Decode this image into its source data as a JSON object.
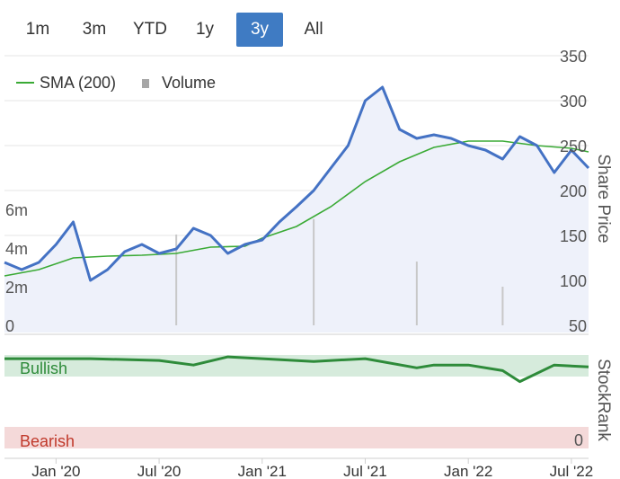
{
  "range_selector": {
    "options": [
      "1m",
      "3m",
      "YTD",
      "1y",
      "3y",
      "All"
    ],
    "selected": "3y"
  },
  "colors": {
    "price_line": "#4472c4",
    "price_fill": "#eef1fa",
    "sma_line": "#3aaa35",
    "volume_bar": "#c8c8c8",
    "bullish_band": "#d6ebdc",
    "bearish_band": "#f4d9d9",
    "rank_line": "#2e8b3a",
    "rank_low": "#9a9a9a",
    "active_range": "#3f7bc3"
  },
  "chart_data": [
    {
      "type": "line",
      "y2label": "Share Price",
      "y2_ticks": [
        350,
        300,
        250,
        200,
        150,
        100,
        50
      ],
      "y2lim": [
        50,
        350
      ],
      "y_ticks": [
        "6m",
        "4m",
        "2m",
        "0"
      ],
      "ylim": [
        0,
        7000000
      ],
      "x_ticks": [
        "Jan '20",
        "Jul '20",
        "Jan '21",
        "Jul '21",
        "Jan '22",
        "Jul '22"
      ],
      "legend": [
        "SMA (200)",
        "Volume"
      ],
      "legend_position": "top-left",
      "grid": true,
      "series": [
        {
          "name": "Share Price",
          "x": [
            "2019-10",
            "2019-11",
            "2019-12",
            "2020-01",
            "2020-02",
            "2020-03",
            "2020-04",
            "2020-05",
            "2020-06",
            "2020-07",
            "2020-08",
            "2020-09",
            "2020-10",
            "2020-11",
            "2020-12",
            "2021-01",
            "2021-02",
            "2021-03",
            "2021-04",
            "2021-05",
            "2021-06",
            "2021-07",
            "2021-08",
            "2021-09",
            "2021-10",
            "2021-11",
            "2021-12",
            "2022-01",
            "2022-02",
            "2022-03",
            "2022-04",
            "2022-05",
            "2022-06",
            "2022-07",
            "2022-08"
          ],
          "values": [
            120,
            112,
            120,
            140,
            165,
            100,
            112,
            132,
            140,
            130,
            135,
            158,
            150,
            130,
            140,
            145,
            165,
            182,
            200,
            225,
            250,
            300,
            315,
            268,
            258,
            262,
            258,
            250,
            245,
            235,
            260,
            250,
            220,
            245,
            225
          ]
        },
        {
          "name": "SMA (200)",
          "x": [
            "2019-10",
            "2019-12",
            "2020-02",
            "2020-04",
            "2020-06",
            "2020-08",
            "2020-10",
            "2020-12",
            "2021-01",
            "2021-03",
            "2021-05",
            "2021-07",
            "2021-09",
            "2021-11",
            "2022-01",
            "2022-03",
            "2022-05",
            "2022-07",
            "2022-08"
          ],
          "values": [
            105,
            112,
            125,
            127,
            128,
            130,
            137,
            138,
            147,
            160,
            182,
            210,
            232,
            248,
            255,
            255,
            250,
            247,
            243
          ]
        },
        {
          "name": "Volume",
          "x": [
            "2020-08",
            "2021-04",
            "2021-10",
            "2022-03"
          ],
          "values": [
            4700000,
            5500000,
            3300000,
            2000000
          ]
        }
      ]
    },
    {
      "type": "line",
      "ylabel": "StockRank",
      "y_tick_bottom": "0",
      "bands": [
        "Bullish",
        "Bearish"
      ],
      "grid": true,
      "series": [
        {
          "name": "StockRank",
          "x": [
            "2019-10",
            "2020-03",
            "2020-07",
            "2020-09",
            "2020-11",
            "2021-01",
            "2021-04",
            "2021-07",
            "2021-10",
            "2021-11",
            "2022-01",
            "2022-03",
            "2022-04",
            "2022-06",
            "2022-08"
          ],
          "values": [
            95,
            95,
            93,
            88,
            97,
            95,
            92,
            95,
            85,
            88,
            88,
            82,
            70,
            88,
            86
          ]
        }
      ]
    }
  ]
}
